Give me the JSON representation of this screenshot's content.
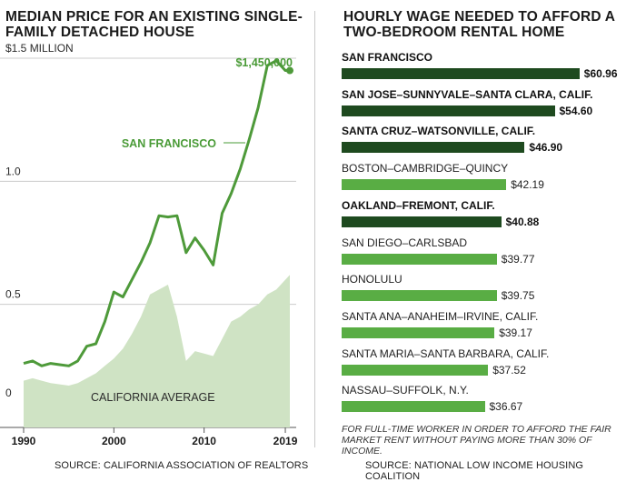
{
  "chart_data": [
    {
      "type": "line",
      "title": "MEDIAN PRICE FOR AN EXISTING SINGLE-FAMILY DETACHED HOUSE",
      "y_unit_label": "$1.5 MILLION",
      "ylim": [
        0,
        1.5
      ],
      "y_ticks": [
        {
          "value": 0,
          "label": "0"
        },
        {
          "value": 0.5,
          "label": "0.5"
        },
        {
          "value": 1.0,
          "label": "1.0"
        },
        {
          "value": 1.5,
          "label": "$1.5 MILLION"
        }
      ],
      "xlim": [
        1990,
        2019.5
      ],
      "x_ticks": [
        {
          "value": 1990,
          "label": "1990"
        },
        {
          "value": 2000,
          "label": "2000"
        },
        {
          "value": 2010,
          "label": "2010"
        },
        {
          "value": 2019,
          "label": "2019"
        }
      ],
      "grid": true,
      "series": [
        {
          "name": "SAN FRANCISCO",
          "style": "line",
          "x": [
            1990,
            1991,
            1992,
            1993,
            1994,
            1995,
            1996,
            1997,
            1998,
            1999,
            2000,
            2001,
            2002,
            2003,
            2004,
            2005,
            2006,
            2007,
            2008,
            2009,
            2010,
            2011,
            2012,
            2013,
            2014,
            2015,
            2016,
            2017,
            2018,
            2019,
            2019.5
          ],
          "values": [
            0.26,
            0.27,
            0.25,
            0.26,
            0.255,
            0.25,
            0.27,
            0.33,
            0.34,
            0.43,
            0.55,
            0.53,
            0.6,
            0.67,
            0.75,
            0.86,
            0.855,
            0.86,
            0.71,
            0.77,
            0.72,
            0.66,
            0.87,
            0.95,
            1.05,
            1.17,
            1.3,
            1.47,
            1.49,
            1.45,
            1.45
          ],
          "endpoint_label": "$1,450,000"
        },
        {
          "name": "CALIFORNIA AVERAGE",
          "style": "area",
          "x": [
            1990,
            1991,
            1992,
            1993,
            1994,
            1995,
            1996,
            1997,
            1998,
            1999,
            2000,
            2001,
            2002,
            2003,
            2004,
            2005,
            2006,
            2007,
            2008,
            2009,
            2010,
            2011,
            2012,
            2013,
            2014,
            2015,
            2016,
            2017,
            2018,
            2019,
            2019.5
          ],
          "values": [
            0.19,
            0.2,
            0.19,
            0.18,
            0.175,
            0.17,
            0.18,
            0.2,
            0.22,
            0.25,
            0.28,
            0.32,
            0.38,
            0.45,
            0.54,
            0.56,
            0.58,
            0.45,
            0.27,
            0.31,
            0.3,
            0.29,
            0.36,
            0.43,
            0.45,
            0.48,
            0.5,
            0.54,
            0.56,
            0.6,
            0.62
          ]
        }
      ],
      "source": "SOURCE: CALIFORNIA ASSOCIATION OF REALTORS"
    },
    {
      "type": "bar",
      "orientation": "horizontal",
      "title": "HOURLY WAGE NEEDED TO AFFORD A TWO-BEDROOM RENTAL HOME",
      "xlim": [
        0,
        61
      ],
      "categories": [
        "SAN FRANCISCO",
        "SAN JOSE–SUNNYVALE–SANTA CLARA, CALIF.",
        "SANTA CRUZ–WATSONVILLE, CALIF.",
        "BOSTON–CAMBRIDGE–QUINCY",
        "OAKLAND–FREMONT, CALIF.",
        "SAN DIEGO–CARLSBAD",
        "HONOLULU",
        "SANTA ANA–ANAHEIM–IRVINE, CALIF.",
        "SANTA MARIA–SANTA BARBARA, CALIF.",
        "NASSAU–SUFFOLK, N.Y."
      ],
      "values": [
        60.96,
        54.6,
        46.9,
        42.19,
        40.88,
        39.77,
        39.75,
        39.17,
        37.52,
        36.67
      ],
      "value_labels": [
        "$60.96",
        "$54.60",
        "$46.90",
        "$42.19",
        "$40.88",
        "$39.77",
        "$39.75",
        "$39.17",
        "$37.52",
        "$36.67"
      ],
      "highlighted": [
        true,
        true,
        true,
        false,
        true,
        false,
        false,
        false,
        false,
        false
      ],
      "footnote": "FOR FULL-TIME WORKER IN ORDER TO AFFORD THE FAIR MARKET RENT WITHOUT PAYING MORE THAN 30% OF INCOME.",
      "source": "SOURCE: NATIONAL LOW INCOME HOUSING COALITION"
    }
  ],
  "colors": {
    "dark_green": "#1e4a1f",
    "line_green": "#4e9a3a",
    "bright_green": "#59ad44",
    "area_green": "#cfe3c4",
    "label_green": "#4a9b37",
    "grid": "#cccccc"
  }
}
